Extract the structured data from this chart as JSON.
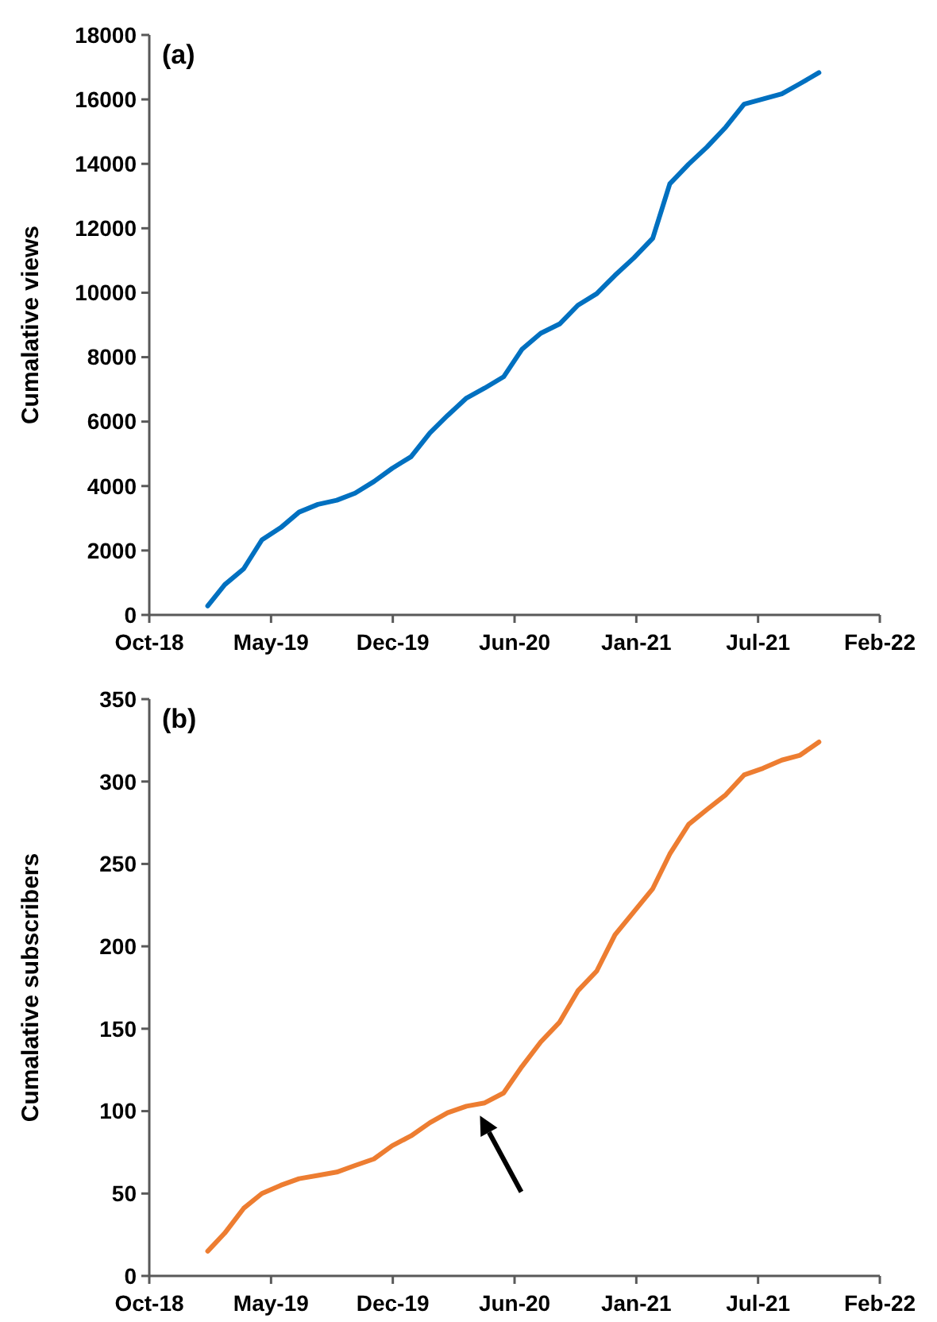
{
  "chart_data": [
    {
      "type": "line",
      "ylabel": "Cumalative views",
      "annotations": [
        "(a)"
      ],
      "x": [
        "2019-02",
        "2019-03",
        "2019-04",
        "2019-05",
        "2019-06",
        "2019-07",
        "2019-08",
        "2019-09",
        "2019-10",
        "2019-11",
        "2019-12",
        "2020-01",
        "2020-02",
        "2020-03",
        "2020-04",
        "2020-05",
        "2020-06",
        "2020-07",
        "2020-08",
        "2020-09",
        "2020-10",
        "2020-11",
        "2020-12",
        "2021-01",
        "2021-02",
        "2021-03",
        "2021-04",
        "2021-05",
        "2021-06",
        "2021-07",
        "2021-08",
        "2021-09",
        "2021-10",
        "2021-11"
      ],
      "series": [
        {
          "color": "#0070c0",
          "values": [
            280,
            940,
            1430,
            2330,
            2710,
            3190,
            3430,
            3560,
            3780,
            4140,
            4550,
            4910,
            5650,
            6190,
            6730,
            7040,
            7390,
            8240,
            8740,
            9030,
            9610,
            9970,
            10540,
            11080,
            11690,
            13380,
            13990,
            14520,
            15140,
            15850,
            16010,
            16170,
            16490,
            16830
          ]
        }
      ],
      "xlim": [
        "2018-10-28",
        "2022-02-09"
      ],
      "xticks": [
        {
          "value": "2018-10-28",
          "label": "Oct-18"
        },
        {
          "value": "2019-05-16",
          "label": "May-19"
        },
        {
          "value": "2019-12-02",
          "label": "Dec-19"
        },
        {
          "value": "2020-06-19",
          "label": "Jun-20"
        },
        {
          "value": "2021-01-05",
          "label": "Jan-21"
        },
        {
          "value": "2021-07-24",
          "label": "Jul-21"
        },
        {
          "value": "2022-02-09",
          "label": "Feb-22"
        }
      ],
      "ylim": [
        0,
        18000
      ],
      "yticks": [
        0,
        2000,
        4000,
        6000,
        8000,
        10000,
        12000,
        14000,
        16000,
        18000
      ],
      "grid": false,
      "marker": "none",
      "line_style": "solid"
    },
    {
      "type": "line",
      "ylabel": "Cumalative subscribers",
      "annotations": [
        "(b)"
      ],
      "x": [
        "2019-02",
        "2019-03",
        "2019-04",
        "2019-05",
        "2019-06",
        "2019-07",
        "2019-08",
        "2019-09",
        "2019-10",
        "2019-11",
        "2019-12",
        "2020-01",
        "2020-02",
        "2020-03",
        "2020-04",
        "2020-05",
        "2020-06",
        "2020-07",
        "2020-08",
        "2020-09",
        "2020-10",
        "2020-11",
        "2020-12",
        "2021-01",
        "2021-02",
        "2021-03",
        "2021-04",
        "2021-05",
        "2021-06",
        "2021-07",
        "2021-08",
        "2021-09",
        "2021-10",
        "2021-11"
      ],
      "series": [
        {
          "color": "#ed7d31",
          "values": [
            15,
            26,
            41,
            50,
            55,
            59,
            61,
            63,
            67,
            71,
            79,
            85,
            93,
            99,
            103,
            105,
            111,
            127,
            142,
            154,
            173,
            185,
            207,
            221,
            235,
            256,
            274,
            283,
            292,
            304,
            308,
            313,
            316,
            324
          ]
        }
      ],
      "xlim": [
        "2018-10-28",
        "2022-02-09"
      ],
      "xticks": [
        {
          "value": "2018-10-28",
          "label": "Oct-18"
        },
        {
          "value": "2019-05-16",
          "label": "May-19"
        },
        {
          "value": "2019-12-02",
          "label": "Dec-19"
        },
        {
          "value": "2020-06-19",
          "label": "Jun-20"
        },
        {
          "value": "2021-01-05",
          "label": "Jan-21"
        },
        {
          "value": "2021-07-24",
          "label": "Jul-21"
        },
        {
          "value": "2022-02-09",
          "label": "Feb-22"
        }
      ],
      "ylim": [
        0,
        350
      ],
      "yticks": [
        0,
        50,
        100,
        150,
        200,
        250,
        300,
        350
      ],
      "grid": false,
      "marker": "none",
      "line_style": "solid"
    }
  ]
}
